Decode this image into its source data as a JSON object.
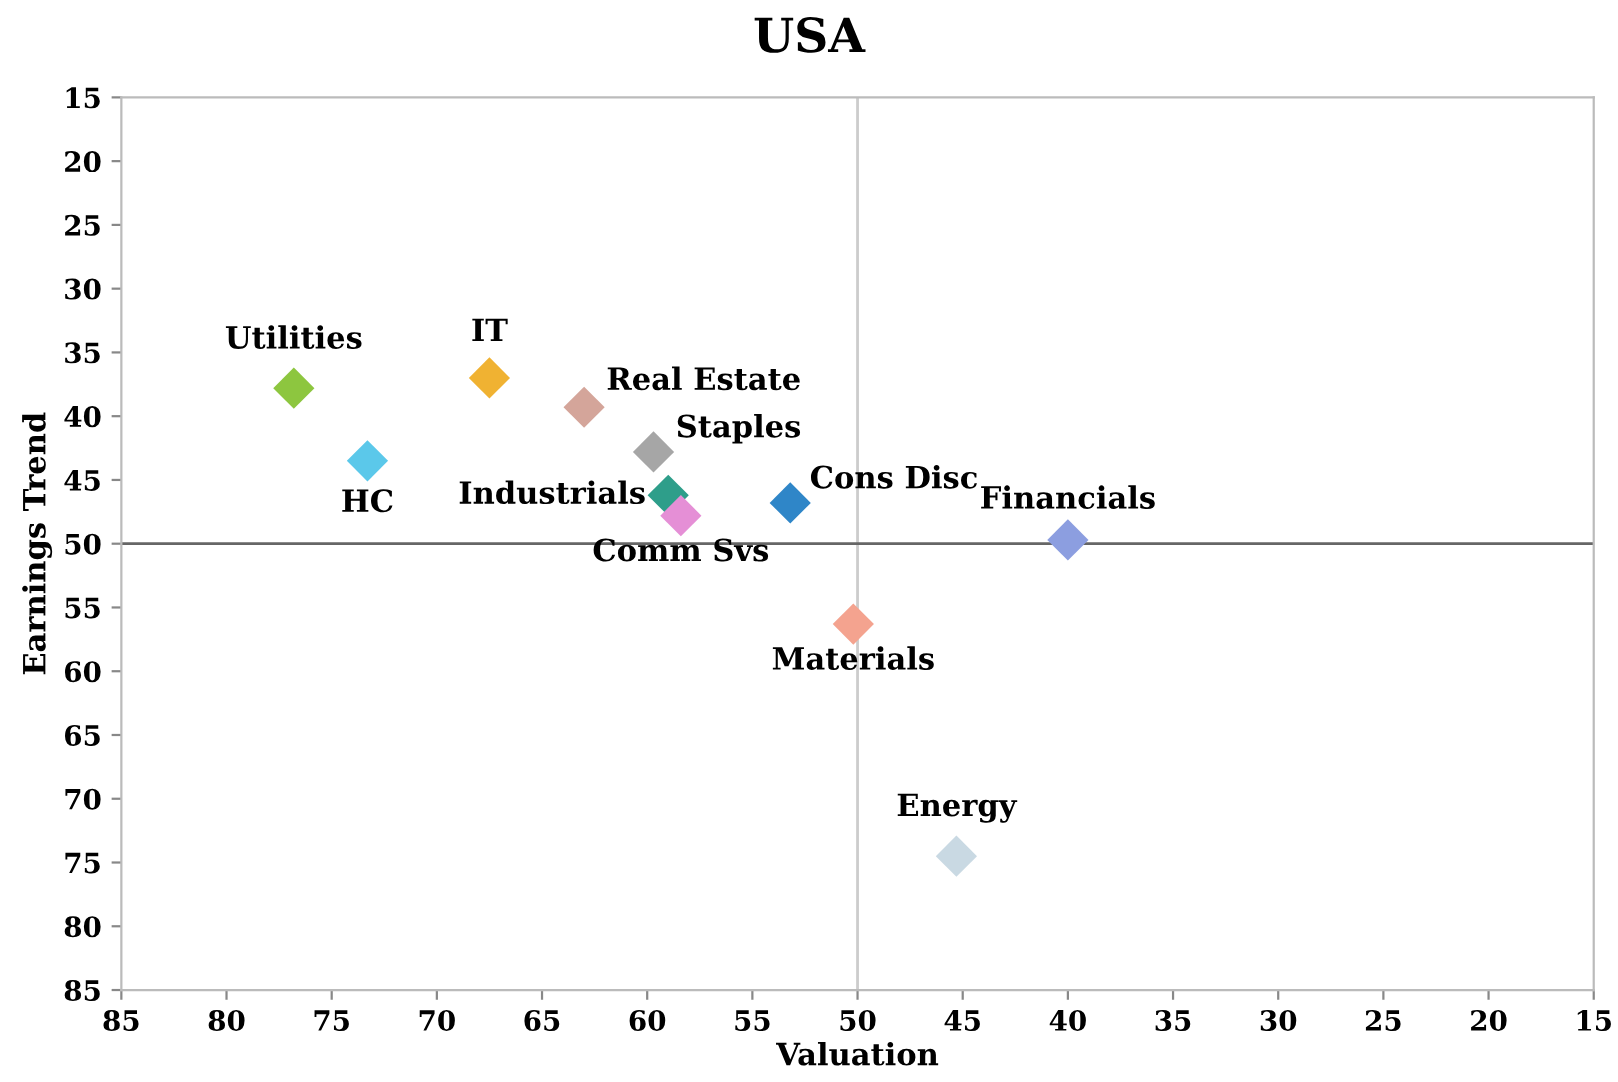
{
  "chart_data": {
    "type": "scatter",
    "title": "USA",
    "xlabel": "Valuation",
    "ylabel": "Earnings Trend",
    "xlim": [
      85,
      15
    ],
    "xticks": [
      85,
      80,
      75,
      70,
      65,
      60,
      55,
      50,
      45,
      40,
      35,
      30,
      25,
      20,
      15
    ],
    "ylim": [
      85,
      15
    ],
    "yticks": [
      85,
      80,
      75,
      70,
      65,
      60,
      55,
      50,
      45,
      40,
      35,
      30,
      25,
      20,
      15
    ],
    "marker": "diamond",
    "grid": false,
    "legend": false,
    "ref_lines": [
      {
        "axis": "x",
        "value": 50,
        "color": "#cccccc"
      },
      {
        "axis": "y",
        "value": 50,
        "color": "#666666"
      }
    ],
    "series": [
      {
        "name": "Utilities",
        "color": "#8dc63f",
        "x": [
          76.8
        ],
        "values": [
          37.8
        ]
      },
      {
        "name": "IT",
        "color": "#f0b232",
        "x": [
          67.5
        ],
        "values": [
          37
        ]
      },
      {
        "name": "Real Estate",
        "color": "#d4a59a",
        "x": [
          63
        ],
        "values": [
          39.3
        ]
      },
      {
        "name": "HC",
        "color": "#5bc8ea",
        "x": [
          73.3
        ],
        "values": [
          43.5
        ]
      },
      {
        "name": "Staples",
        "color": "#a6a6a6",
        "x": [
          59.7
        ],
        "values": [
          42.8
        ]
      },
      {
        "name": "Industrials",
        "color": "#2e9e8a",
        "x": [
          59
        ],
        "values": [
          46.2
        ]
      },
      {
        "name": "Comm Svs",
        "color": "#e58fd6",
        "x": [
          58.4
        ],
        "values": [
          47.8
        ]
      },
      {
        "name": "Cons Disc",
        "color": "#2f86c8",
        "x": [
          53.2
        ],
        "values": [
          46.8
        ]
      },
      {
        "name": "Financials",
        "color": "#8c9ee0",
        "x": [
          40
        ],
        "values": [
          49.7
        ]
      },
      {
        "name": "Materials",
        "color": "#f4a38f",
        "x": [
          50.2
        ],
        "values": [
          56.3
        ]
      },
      {
        "name": "Energy",
        "color": "#c9d9e3",
        "x": [
          45.3
        ],
        "values": [
          74.5
        ]
      }
    ]
  }
}
